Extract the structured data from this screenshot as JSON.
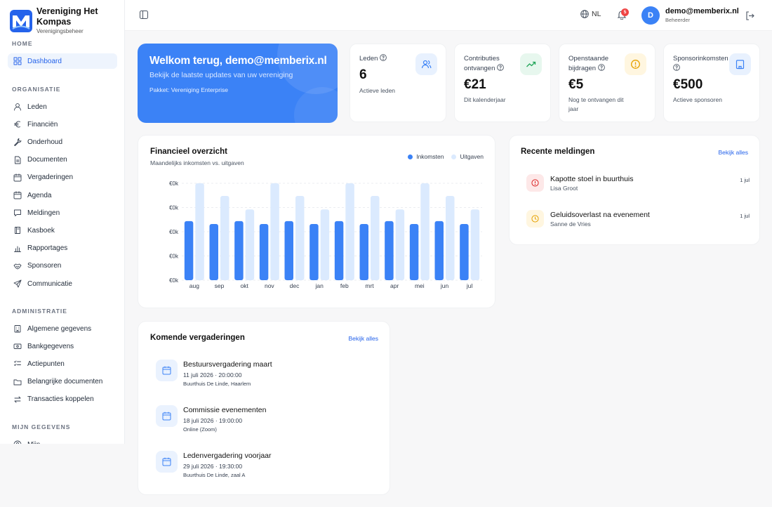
{
  "brand": {
    "name": "Vereniging Het Kompas",
    "subtitle": "Verenigingsbeheer"
  },
  "sidebar": {
    "sections": [
      {
        "label": "HOME",
        "items": [
          {
            "label": "Dashboard",
            "icon": "grid-icon",
            "active": true
          }
        ]
      },
      {
        "label": "ORGANISATIE",
        "items": [
          {
            "label": "Leden",
            "icon": "user-icon"
          },
          {
            "label": "Financiën",
            "icon": "euro-icon"
          },
          {
            "label": "Onderhoud",
            "icon": "wrench-icon"
          },
          {
            "label": "Documenten",
            "icon": "document-icon"
          },
          {
            "label": "Vergaderingen",
            "icon": "calendar-icon"
          },
          {
            "label": "Agenda",
            "icon": "calendar-icon"
          },
          {
            "label": "Meldingen",
            "icon": "message-icon"
          },
          {
            "label": "Kasboek",
            "icon": "book-icon"
          },
          {
            "label": "Rapportages",
            "icon": "bar-chart-icon"
          },
          {
            "label": "Sponsoren",
            "icon": "handshake-icon"
          },
          {
            "label": "Communicatie",
            "icon": "send-icon"
          }
        ]
      },
      {
        "label": "ADMINISTRATIE",
        "items": [
          {
            "label": "Algemene gegevens",
            "icon": "building-icon"
          },
          {
            "label": "Bankgegevens",
            "icon": "bank-card-icon"
          },
          {
            "label": "Actiepunten",
            "icon": "checklist-icon"
          },
          {
            "label": "Belangrijke documenten",
            "icon": "folder-icon"
          },
          {
            "label": "Transacties koppelen",
            "icon": "swap-icon"
          }
        ]
      },
      {
        "label": "MIJN GEGEVENS",
        "items": [
          {
            "label": "Mijn...",
            "icon": "user-circle-icon"
          }
        ]
      }
    ]
  },
  "topbar": {
    "language": "NL",
    "notification_count": "5",
    "avatar_initial": "D",
    "user_email": "demo@memberix.nl",
    "user_role": "Beheerder"
  },
  "welcome": {
    "title": "Welkom terug, demo@memberix.nl",
    "subtitle": "Bekijk de laatste updates van uw vereniging",
    "package": "Pakket: Vereniging Enterprise"
  },
  "stats": [
    {
      "label": "Leden",
      "value": "6",
      "description": "Actieve leden",
      "icon": "users-icon",
      "tint": "#e8f1fe",
      "color": "#3b82f6"
    },
    {
      "label": "Contributies ontvangen",
      "value": "€21",
      "description": "Dit kalenderjaar",
      "icon": "trending-up-icon",
      "tint": "#e7f7ee",
      "color": "#22a559"
    },
    {
      "label": "Openstaande bijdragen",
      "value": "€5",
      "description": "Nog te ontvangen dit jaar",
      "icon": "alert-circle-icon",
      "tint": "#fff6e0",
      "color": "#e6a100"
    },
    {
      "label": "Sponsorinkomsten",
      "value": "€500",
      "description": "Actieve sponsoren",
      "icon": "building-icon",
      "tint": "#e8f1fe",
      "color": "#3b82f6"
    }
  ],
  "finance": {
    "title": "Financieel overzicht",
    "subtitle": "Maandelijks inkomsten vs. uitgaven",
    "legend": [
      {
        "name": "Inkomsten",
        "color": "#3b82f6"
      },
      {
        "name": "Uitgaven",
        "color": "#dbeafe"
      }
    ]
  },
  "chart_data": {
    "type": "bar",
    "categories": [
      "aug",
      "sep",
      "okt",
      "nov",
      "dec",
      "jan",
      "feb",
      "mrt",
      "apr",
      "mei",
      "jun",
      "jul"
    ],
    "series": [
      {
        "name": "Inkomsten",
        "values": [
          61,
          58,
          61,
          58,
          61,
          58,
          61,
          58,
          61,
          58,
          61,
          58
        ]
      },
      {
        "name": "Uitgaven",
        "values": [
          100,
          87,
          73,
          100,
          87,
          73,
          100,
          87,
          73,
          100,
          87,
          73
        ]
      }
    ],
    "ytick_labels": [
      "€0k",
      "€0k",
      "€0k",
      "€0k",
      "€0k"
    ],
    "ylim": [
      0,
      100
    ],
    "grid": "horizontal-dashed",
    "legend_position": "top-right"
  },
  "notifications": {
    "title": "Recente meldingen",
    "view_all": "Bekijk alles",
    "items": [
      {
        "title": "Kapotte stoel in buurthuis",
        "person": "Lisa Groot",
        "date": "1 jul",
        "icon": "alert-circle-icon",
        "tint": "#fde8e8",
        "color": "#dc2626"
      },
      {
        "title": "Geluidsoverlast na evenement",
        "person": "Sanne de Vries",
        "date": "1 jul",
        "icon": "clock-icon",
        "tint": "#fff6e0",
        "color": "#e6a100"
      }
    ]
  },
  "meetings": {
    "title": "Komende vergaderingen",
    "view_all": "Bekijk alles",
    "items": [
      {
        "title": "Bestuursvergadering maart",
        "datetime": "11 juli 2026 · 20:00:00",
        "location": "Buurthuis De Linde, Haarlem"
      },
      {
        "title": "Commissie evenementen",
        "datetime": "18 juli 2026 · 19:00:00",
        "location": "Online (Zoom)"
      },
      {
        "title": "Ledenvergadering voorjaar",
        "datetime": "29 juli 2026 · 19:30:00",
        "location": "Buurthuis De Linde, zaal A"
      }
    ]
  }
}
